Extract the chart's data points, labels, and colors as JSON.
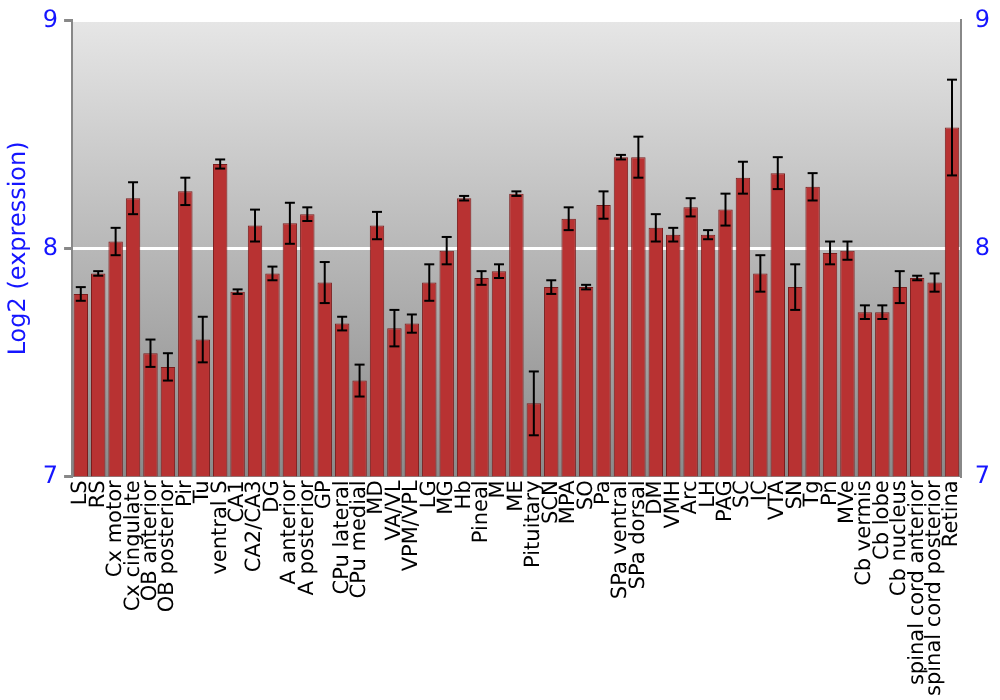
{
  "chart_data": {
    "type": "bar",
    "ylabel": "Log2 (expression)",
    "categories": [
      "LS",
      "RS",
      "Cx motor",
      "Cx cingulate",
      "OB anterior",
      "OB posterior",
      "Pir",
      "Tu",
      "ventral S",
      "CA1",
      "CA2/CA3",
      "DG",
      "A anterior",
      "A posterior",
      "GP",
      "CPu lateral",
      "CPu medial",
      "MD",
      "VA/VL",
      "VPM/VPL",
      "LG",
      "MG",
      "Hb",
      "Pineal",
      "M",
      "ME",
      "Pituitary",
      "SCN",
      "MPA",
      "SO",
      "Pa",
      "SPa ventral",
      "SPa dorsal",
      "DM",
      "VMH",
      "Arc",
      "LH",
      "PAG",
      "SC",
      "IC",
      "VTA",
      "SN",
      "Tg",
      "Pn",
      "MVe",
      "Cb vermis",
      "Cb lobe",
      "Cb nucleus",
      "spinal cord anterior",
      "spinal cord posterior",
      "Retina"
    ],
    "values": [
      7.8,
      7.89,
      8.03,
      8.22,
      7.54,
      7.48,
      8.25,
      7.6,
      8.37,
      7.81,
      8.1,
      7.89,
      8.11,
      8.15,
      7.85,
      7.67,
      7.42,
      8.1,
      7.65,
      7.67,
      7.85,
      7.99,
      8.22,
      7.87,
      7.9,
      8.24,
      7.32,
      7.83,
      8.13,
      7.83,
      8.19,
      8.4,
      8.4,
      8.09,
      8.06,
      8.18,
      8.06,
      8.17,
      8.31,
      7.89,
      8.33,
      7.83,
      8.27,
      7.98,
      7.99,
      7.72,
      7.72,
      7.83,
      7.87,
      7.85,
      8.53
    ],
    "errors": [
      0.03,
      0.01,
      0.06,
      0.07,
      0.06,
      0.06,
      0.06,
      0.1,
      0.02,
      0.01,
      0.07,
      0.03,
      0.09,
      0.03,
      0.09,
      0.03,
      0.07,
      0.06,
      0.08,
      0.04,
      0.08,
      0.06,
      0.01,
      0.03,
      0.03,
      0.01,
      0.14,
      0.03,
      0.05,
      0.01,
      0.06,
      0.01,
      0.09,
      0.06,
      0.03,
      0.04,
      0.02,
      0.07,
      0.07,
      0.08,
      0.07,
      0.1,
      0.06,
      0.05,
      0.04,
      0.03,
      0.03,
      0.07,
      0.01,
      0.04,
      0.21
    ],
    "color": "#b83232",
    "ylim": [
      7,
      9
    ],
    "yticks": [
      7,
      8,
      9
    ],
    "y2lim": [
      7,
      9
    ],
    "y2ticks": [
      7,
      8,
      9
    ],
    "grid": "y"
  }
}
